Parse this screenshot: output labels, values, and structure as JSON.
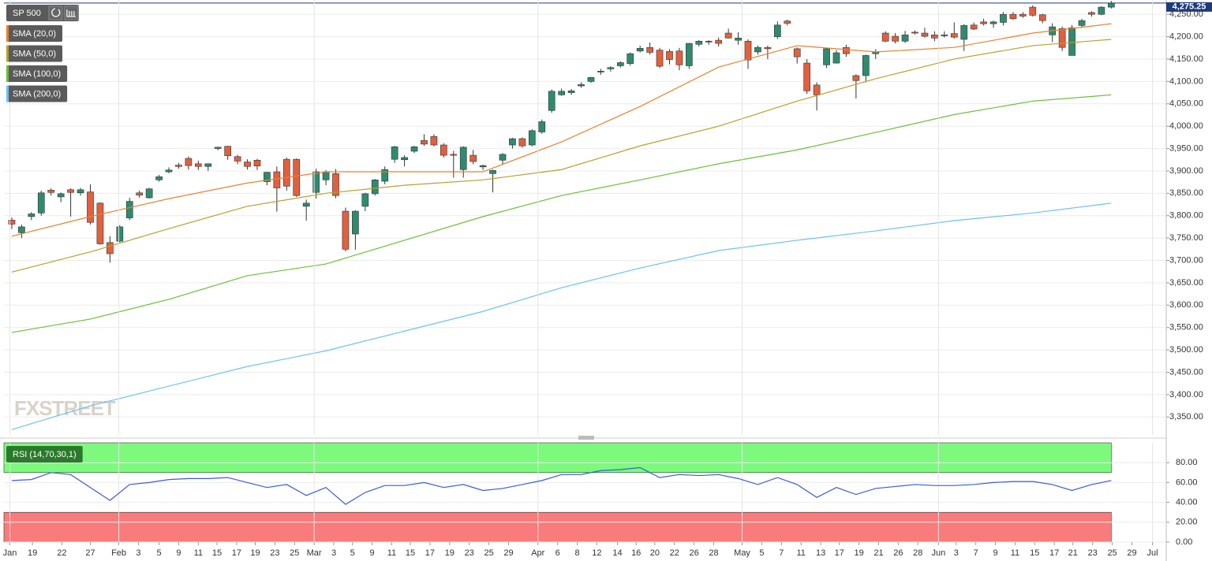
{
  "chart_data": [
    {
      "type": "candlestick",
      "title": "SP 500",
      "watermark": "FXSTREET",
      "last_price": {
        "value": 4275.25,
        "label": "4,275.25"
      },
      "up_color": "#2e8b6f",
      "down_color": "#e0603f",
      "grid": true,
      "xlim": [
        -0.8,
        117.6
      ],
      "ylim": [
        3310,
        4282
      ],
      "yticks": [
        {
          "value": 3350,
          "label": "3,350.00"
        },
        {
          "value": 3400,
          "label": "3,400.00"
        },
        {
          "value": 3450,
          "label": "3,450.00"
        },
        {
          "value": 3500,
          "label": "3,500.00"
        },
        {
          "value": 3550,
          "label": "3,550.00"
        },
        {
          "value": 3600,
          "label": "3,600.00"
        },
        {
          "value": 3650,
          "label": "3,650.00"
        },
        {
          "value": 3700,
          "label": "3,700.00"
        },
        {
          "value": 3750,
          "label": "3,750.00"
        },
        {
          "value": 3800,
          "label": "3,800.00"
        },
        {
          "value": 3850,
          "label": "3,850.00"
        },
        {
          "value": 3900,
          "label": "3,900.00"
        },
        {
          "value": 3950,
          "label": "3,950.00"
        },
        {
          "value": 4000,
          "label": "4,000.00"
        },
        {
          "value": 4050,
          "label": "4,050.00"
        },
        {
          "value": 4100,
          "label": "4,100.00"
        },
        {
          "value": 4150,
          "label": "4,150.00"
        },
        {
          "value": 4200,
          "label": "4,200.00"
        },
        {
          "value": 4250,
          "label": "4,250.00"
        }
      ],
      "x": [
        0,
        1,
        2,
        3,
        4,
        5,
        6,
        7,
        8,
        9,
        10,
        11,
        12,
        13,
        14,
        15,
        16,
        17,
        18,
        19,
        20,
        21,
        22,
        23,
        24,
        25,
        26,
        27,
        28,
        29,
        30,
        31,
        32,
        33,
        34,
        35,
        36,
        37,
        38,
        39,
        40,
        41,
        42,
        43,
        44,
        45,
        46,
        47,
        48,
        49,
        50,
        51,
        52,
        53,
        54,
        55,
        56,
        57,
        58,
        59,
        60,
        61,
        62,
        63,
        64,
        65,
        66,
        67,
        68,
        69,
        70,
        71,
        72,
        73,
        74,
        75,
        76,
        77,
        78,
        79,
        80,
        81,
        82,
        83,
        84,
        85,
        86,
        87,
        88,
        89,
        90,
        91,
        92,
        93,
        94,
        95,
        96,
        97,
        98,
        99,
        100,
        101,
        102,
        103,
        104,
        105,
        106,
        107,
        108,
        109,
        110,
        111,
        112
      ],
      "open": [
        3790,
        3762,
        3798,
        3806,
        3857,
        3842,
        3858,
        3851,
        3853,
        3828,
        3740,
        3743,
        3795,
        3851,
        3840,
        3880,
        3898,
        3913,
        3928,
        3916,
        3910,
        3950,
        3955,
        3932,
        3920,
        3924,
        3876,
        3898,
        3926,
        3926,
        3821,
        3852,
        3880,
        3894,
        3810,
        3759,
        3821,
        3849,
        3877,
        3926,
        3925,
        3944,
        3968,
        3977,
        3958,
        3937,
        3903,
        3935,
        3909,
        3894,
        3924,
        3958,
        3972,
        3958,
        3987,
        4035,
        4070,
        4075,
        4090,
        4100,
        4121,
        4128,
        4135,
        4140,
        4168,
        4176,
        4170,
        4167,
        4168,
        4135,
        4183,
        4188,
        4192,
        4208,
        4192,
        4190,
        4166,
        4176,
        4200,
        4235,
        4173,
        4141,
        4092,
        4137,
        4141,
        4176,
        4113,
        4113,
        4162,
        4208,
        4201,
        4190,
        4210,
        4208,
        4204,
        4202,
        4207,
        4194,
        4226,
        4233,
        4229,
        4232,
        4250,
        4250,
        4266,
        4249,
        4204,
        4218,
        4158,
        4225,
        4254,
        4250,
        4266
      ],
      "high": [
        3796,
        3780,
        3808,
        3856,
        3861,
        3852,
        3861,
        3862,
        3870,
        3830,
        3754,
        3779,
        3840,
        3856,
        3862,
        3891,
        3908,
        3918,
        3932,
        3923,
        3917,
        3954,
        3956,
        3936,
        3926,
        3927,
        3898,
        3910,
        3930,
        3928,
        3836,
        3905,
        3902,
        3904,
        3818,
        3812,
        3851,
        3882,
        3910,
        3956,
        3935,
        3956,
        3982,
        3982,
        3962,
        3945,
        3955,
        3947,
        3914,
        3903,
        3940,
        3974,
        3975,
        3993,
        4015,
        4082,
        4084,
        4083,
        4098,
        4110,
        4128,
        4134,
        4145,
        4165,
        4180,
        4187,
        4175,
        4172,
        4175,
        4186,
        4192,
        4192,
        4198,
        4218,
        4210,
        4194,
        4180,
        4180,
        4234,
        4238,
        4176,
        4150,
        4098,
        4175,
        4170,
        4182,
        4116,
        4160,
        4172,
        4212,
        4208,
        4213,
        4214,
        4220,
        4212,
        4212,
        4232,
        4228,
        4232,
        4240,
        4236,
        4255,
        4255,
        4255,
        4270,
        4251,
        4230,
        4223,
        4226,
        4240,
        4257,
        4268,
        4280
      ],
      "low": [
        3770,
        3750,
        3790,
        3800,
        3845,
        3830,
        3798,
        3845,
        3780,
        3735,
        3695,
        3740,
        3790,
        3840,
        3838,
        3876,
        3895,
        3905,
        3903,
        3902,
        3900,
        3946,
        3925,
        3915,
        3903,
        3902,
        3868,
        3809,
        3856,
        3842,
        3789,
        3838,
        3868,
        3839,
        3720,
        3724,
        3810,
        3845,
        3870,
        3918,
        3910,
        3940,
        3956,
        3955,
        3930,
        3885,
        3885,
        3915,
        3902,
        3852,
        3915,
        3950,
        3952,
        3955,
        3983,
        4030,
        4068,
        4070,
        4086,
        4097,
        4115,
        4122,
        4131,
        4135,
        4165,
        4160,
        4130,
        4138,
        4125,
        4128,
        4178,
        4182,
        4178,
        4196,
        4182,
        4128,
        4160,
        4150,
        4195,
        4225,
        4140,
        4072,
        4035,
        4130,
        4140,
        4155,
        4062,
        4098,
        4150,
        4188,
        4185,
        4186,
        4205,
        4198,
        4190,
        4198,
        4196,
        4168,
        4215,
        4225,
        4220,
        4225,
        4238,
        4242,
        4245,
        4230,
        4188,
        4168,
        4158,
        4220,
        4245,
        4248,
        4263
      ],
      "close": [
        3781,
        3775,
        3804,
        3851,
        3852,
        3849,
        3852,
        3858,
        3785,
        3737,
        3715,
        3775,
        3832,
        3846,
        3860,
        3887,
        3902,
        3910,
        3912,
        3910,
        3916,
        3953,
        3934,
        3922,
        3910,
        3911,
        3897,
        3862,
        3866,
        3845,
        3828,
        3898,
        3898,
        3845,
        3725,
        3810,
        3849,
        3880,
        3903,
        3954,
        3930,
        3954,
        3960,
        3958,
        3935,
        3935,
        3953,
        3921,
        3912,
        3901,
        3937,
        3972,
        3956,
        3990,
        4010,
        4078,
        4078,
        4079,
        4093,
        4109,
        4123,
        4131,
        4142,
        4162,
        4174,
        4165,
        4134,
        4149,
        4137,
        4185,
        4190,
        4190,
        4185,
        4197,
        4197,
        4148,
        4176,
        4173,
        4226,
        4230,
        4155,
        4079,
        4070,
        4173,
        4164,
        4162,
        4102,
        4158,
        4166,
        4190,
        4190,
        4204,
        4208,
        4201,
        4197,
        4204,
        4199,
        4225,
        4217,
        4229,
        4233,
        4250,
        4240,
        4246,
        4248,
        4236,
        4222,
        4176,
        4220,
        4236,
        4250,
        4266,
        4275.25
      ],
      "series": [
        {
          "name": "SMA (20,0)",
          "color": "#e8812f",
          "x": [
            0,
            8,
            16,
            24,
            32,
            40,
            48,
            56,
            64,
            72,
            80,
            88,
            96,
            104,
            112
          ],
          "values": [
            3754,
            3798,
            3838,
            3873,
            3898,
            3898,
            3898,
            3965,
            4044,
            4132,
            4180,
            4166,
            4176,
            4208,
            4229
          ]
        },
        {
          "name": "SMA (50,0)",
          "color": "#b5a22a",
          "x": [
            0,
            8,
            16,
            24,
            32,
            40,
            48,
            56,
            64,
            72,
            80,
            88,
            96,
            104,
            112
          ],
          "values": [
            3674,
            3719,
            3771,
            3821,
            3850,
            3868,
            3880,
            3903,
            3956,
            4000,
            4056,
            4106,
            4150,
            4180,
            4194
          ]
        },
        {
          "name": "SMA (100,0)",
          "color": "#6bbf3a",
          "x": [
            0,
            8,
            16,
            24,
            32,
            40,
            48,
            56,
            64,
            72,
            80,
            88,
            96,
            104,
            112
          ],
          "values": [
            3539,
            3569,
            3613,
            3666,
            3692,
            3745,
            3798,
            3845,
            3880,
            3916,
            3947,
            3986,
            4026,
            4056,
            4070
          ]
        },
        {
          "name": "SMA (200,0)",
          "color": "#6ec1f0",
          "x": [
            0,
            8,
            16,
            24,
            32,
            40,
            48,
            56,
            64,
            72,
            80,
            88,
            96,
            104,
            112
          ],
          "values": [
            3322,
            3375,
            3419,
            3463,
            3498,
            3542,
            3586,
            3639,
            3683,
            3722,
            3745,
            3766,
            3789,
            3806,
            3828
          ]
        }
      ]
    },
    {
      "type": "line",
      "title": "RSI (14,70,30,1)",
      "color": "#3a5bd9",
      "overbought": 70,
      "oversold": 30,
      "overbought_color": "#7dfa7d",
      "oversold_color": "#fa7b7b",
      "xlim": [
        -0.8,
        117.6
      ],
      "ylim": [
        0,
        100
      ],
      "yticks": [
        {
          "value": 0,
          "label": "0.00"
        },
        {
          "value": 20,
          "label": "20.00"
        },
        {
          "value": 40,
          "label": "40.00"
        },
        {
          "value": 60,
          "label": "60.00"
        },
        {
          "value": 80,
          "label": "80.00"
        }
      ],
      "xticks": [
        {
          "value": -0.2,
          "label": "Jan"
        },
        {
          "value": 2.1,
          "label": "19"
        },
        {
          "value": 5.1,
          "label": "22"
        },
        {
          "value": 8,
          "label": "27"
        },
        {
          "value": 10.9,
          "label": "Feb"
        },
        {
          "value": 12.9,
          "label": "3"
        },
        {
          "value": 15,
          "label": "5"
        },
        {
          "value": 17,
          "label": "9"
        },
        {
          "value": 19,
          "label": "11"
        },
        {
          "value": 20.9,
          "label": "15"
        },
        {
          "value": 22.9,
          "label": "17"
        },
        {
          "value": 24.8,
          "label": "19"
        },
        {
          "value": 26.8,
          "label": "23"
        },
        {
          "value": 28.8,
          "label": "25"
        },
        {
          "value": 30.8,
          "label": "Mar"
        },
        {
          "value": 32.8,
          "label": "3"
        },
        {
          "value": 34.7,
          "label": "5"
        },
        {
          "value": 36.7,
          "label": "9"
        },
        {
          "value": 38.7,
          "label": "11"
        },
        {
          "value": 40.6,
          "label": "15"
        },
        {
          "value": 42.6,
          "label": "17"
        },
        {
          "value": 44.6,
          "label": "19"
        },
        {
          "value": 46.6,
          "label": "23"
        },
        {
          "value": 48.6,
          "label": "25"
        },
        {
          "value": 50.6,
          "label": "29"
        },
        {
          "value": 53.6,
          "label": "Apr"
        },
        {
          "value": 55.6,
          "label": "6"
        },
        {
          "value": 57.6,
          "label": "8"
        },
        {
          "value": 59.6,
          "label": "12"
        },
        {
          "value": 61.7,
          "label": "14"
        },
        {
          "value": 63.6,
          "label": "16"
        },
        {
          "value": 65.5,
          "label": "20"
        },
        {
          "value": 67.5,
          "label": "22"
        },
        {
          "value": 69.5,
          "label": "26"
        },
        {
          "value": 71.5,
          "label": "28"
        },
        {
          "value": 74.4,
          "label": "May"
        },
        {
          "value": 76.4,
          "label": "5"
        },
        {
          "value": 78.4,
          "label": "7"
        },
        {
          "value": 80.4,
          "label": "11"
        },
        {
          "value": 82.4,
          "label": "13"
        },
        {
          "value": 84.3,
          "label": "17"
        },
        {
          "value": 86.3,
          "label": "19"
        },
        {
          "value": 88.3,
          "label": "21"
        },
        {
          "value": 90.3,
          "label": "26"
        },
        {
          "value": 92.3,
          "label": "28"
        },
        {
          "value": 94.4,
          "label": "Jun"
        },
        {
          "value": 96.2,
          "label": "3"
        },
        {
          "value": 98.2,
          "label": "7"
        },
        {
          "value": 100.2,
          "label": "9"
        },
        {
          "value": 102.2,
          "label": "11"
        },
        {
          "value": 104.2,
          "label": "15"
        },
        {
          "value": 106.2,
          "label": "17"
        },
        {
          "value": 108.1,
          "label": "21"
        },
        {
          "value": 110.1,
          "label": "23"
        },
        {
          "value": 112.1,
          "label": "25"
        },
        {
          "value": 114.1,
          "label": "29"
        },
        {
          "value": 116.2,
          "label": "Jul"
        }
      ],
      "x": [
        0,
        2,
        4,
        6,
        8,
        10,
        12,
        14,
        16,
        18,
        20,
        22,
        24,
        26,
        28,
        30,
        32,
        34,
        36,
        38,
        40,
        42,
        44,
        46,
        48,
        50,
        52,
        54,
        56,
        58,
        60,
        62,
        64,
        66,
        68,
        70,
        72,
        74,
        76,
        78,
        80,
        82,
        84,
        86,
        88,
        90,
        92,
        94,
        96,
        98,
        100,
        102,
        104,
        106,
        108,
        110,
        112
      ],
      "values": [
        62,
        63,
        70,
        68,
        55,
        42,
        58,
        60,
        63,
        64,
        64,
        65,
        60,
        55,
        58,
        47,
        55,
        38,
        50,
        57,
        57,
        60,
        55,
        58,
        52,
        54,
        58,
        62,
        68,
        68,
        72,
        73,
        75,
        65,
        68,
        67,
        68,
        64,
        58,
        65,
        58,
        45,
        55,
        48,
        54,
        56,
        58,
        57,
        57,
        58,
        60,
        61,
        61,
        58,
        52,
        58,
        62
      ]
    }
  ]
}
